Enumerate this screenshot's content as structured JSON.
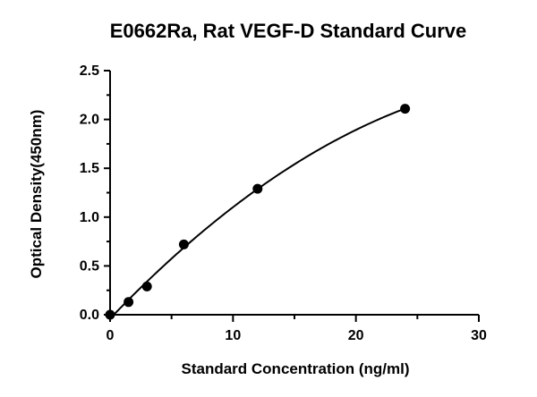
{
  "chart_data": {
    "type": "scatter",
    "title": "E0662Ra, Rat VEGF-D Standard Curve",
    "xlabel": "Standard Concentration (ng/ml)",
    "ylabel": "Optical Density(450nm)",
    "xlim": [
      0,
      30
    ],
    "ylim": [
      0,
      2.5
    ],
    "x_ticks": [
      "0",
      "10",
      "20",
      "30"
    ],
    "y_ticks": [
      "0.0",
      "0.5",
      "1.0",
      "1.5",
      "2.0",
      "2.5"
    ],
    "x_tick_values": [
      0,
      10,
      20,
      30
    ],
    "y_tick_values": [
      0,
      0.5,
      1.0,
      1.5,
      2.0,
      2.5
    ],
    "grid": false,
    "series": [
      {
        "x": [
          0,
          1.5,
          3,
          6,
          12,
          24
        ],
        "y": [
          0.0,
          0.13,
          0.29,
          0.72,
          1.29,
          2.11
        ],
        "fit": "smooth-curve"
      }
    ]
  }
}
